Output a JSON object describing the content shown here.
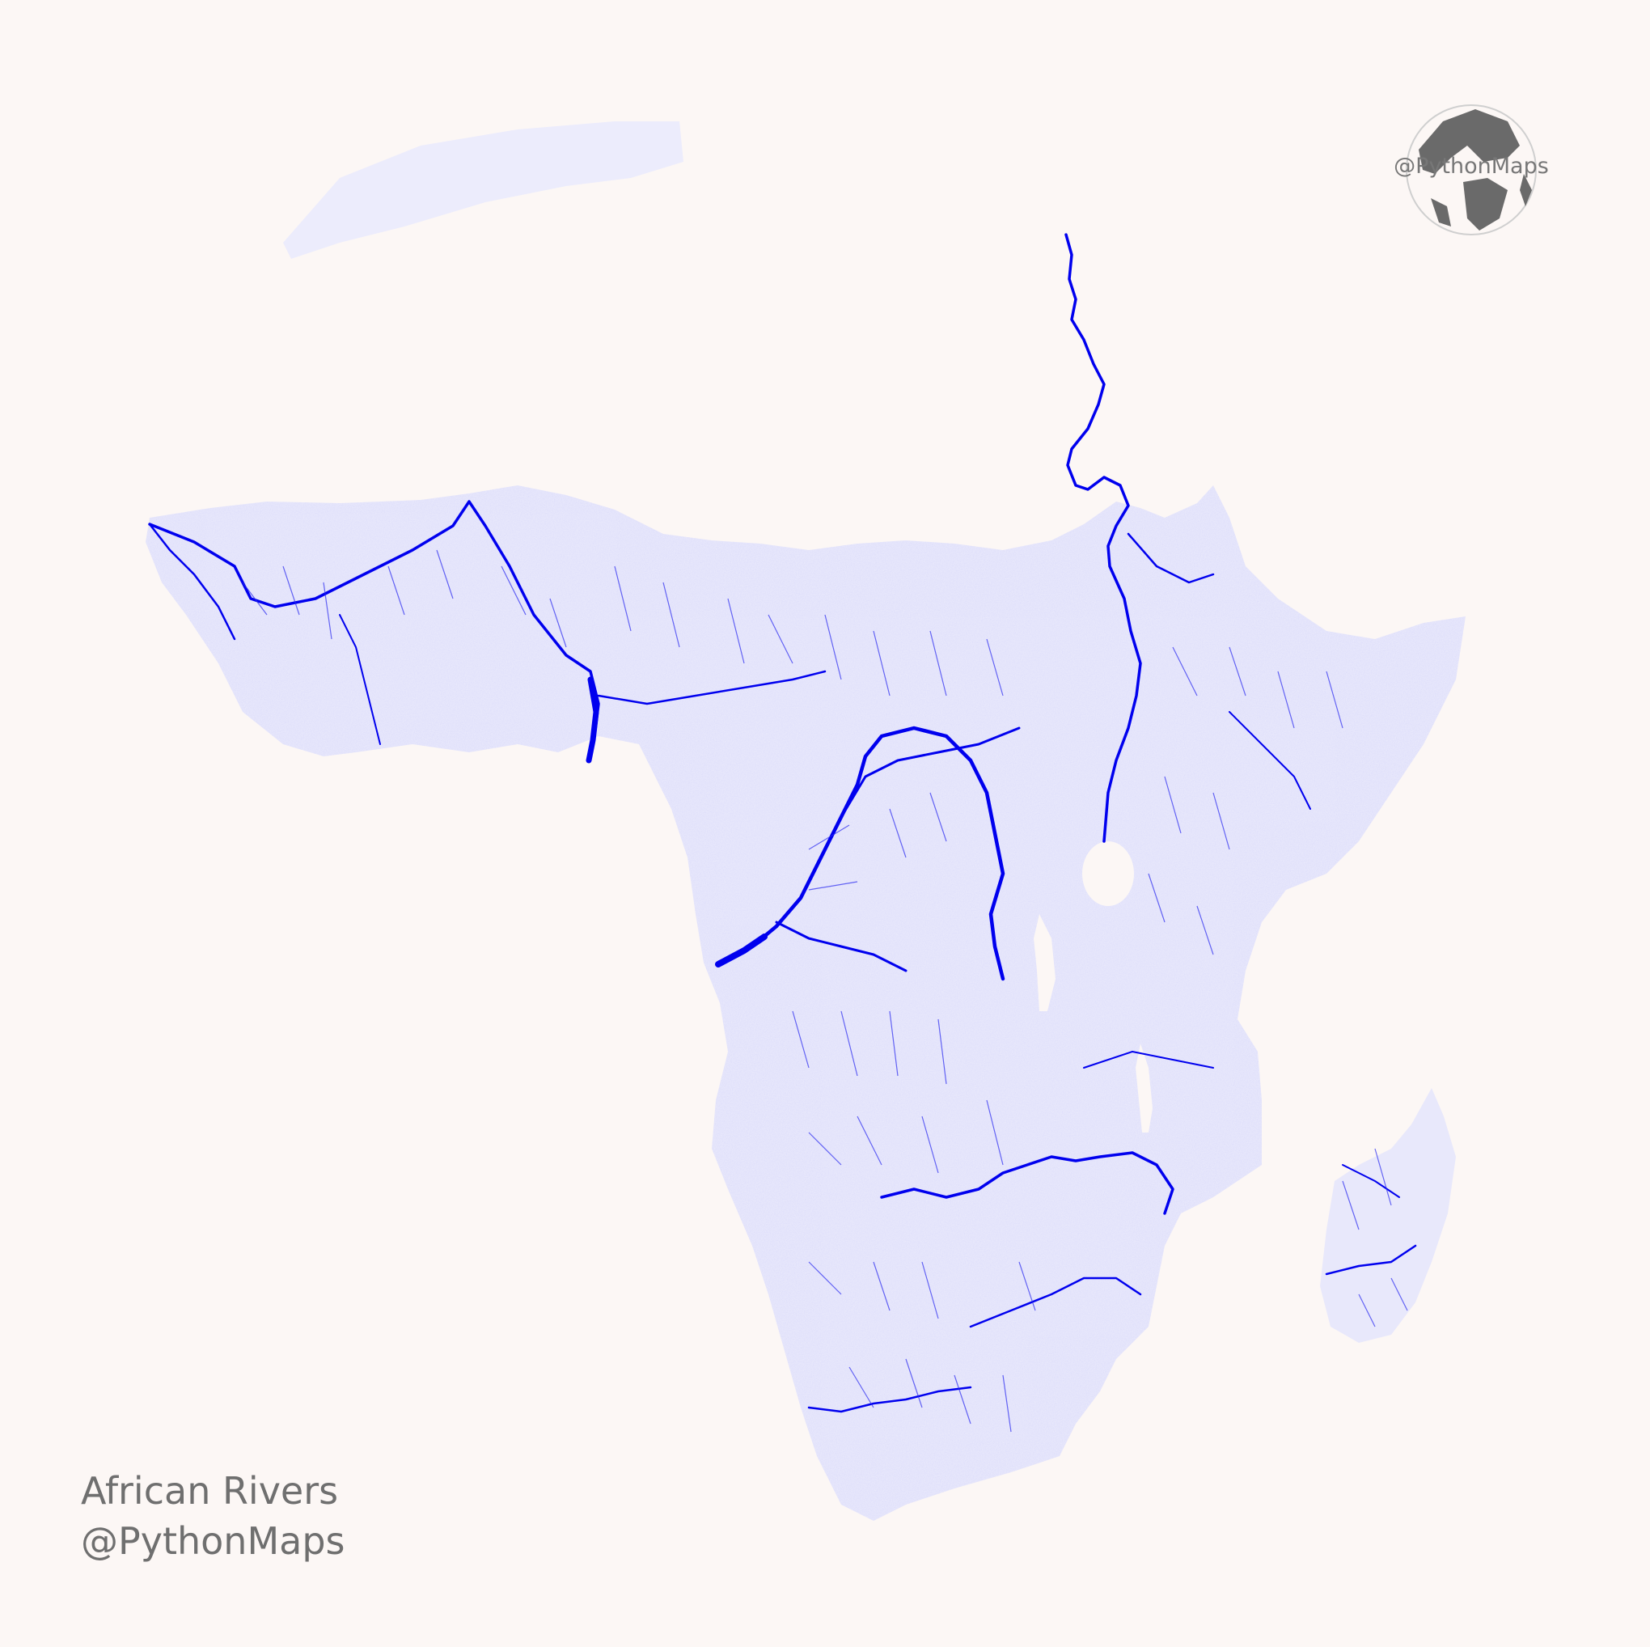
{
  "caption": {
    "title": "African Rivers",
    "credit": "@PythonMaps"
  },
  "logo": {
    "text": "@PythonMaps",
    "icon": "globe-icon"
  },
  "colors": {
    "background": "#fcf7f5",
    "river": "#0000ee",
    "land_tint": "#e6e6fb",
    "caption": "#6f6f6f",
    "logo": "#666666"
  }
}
